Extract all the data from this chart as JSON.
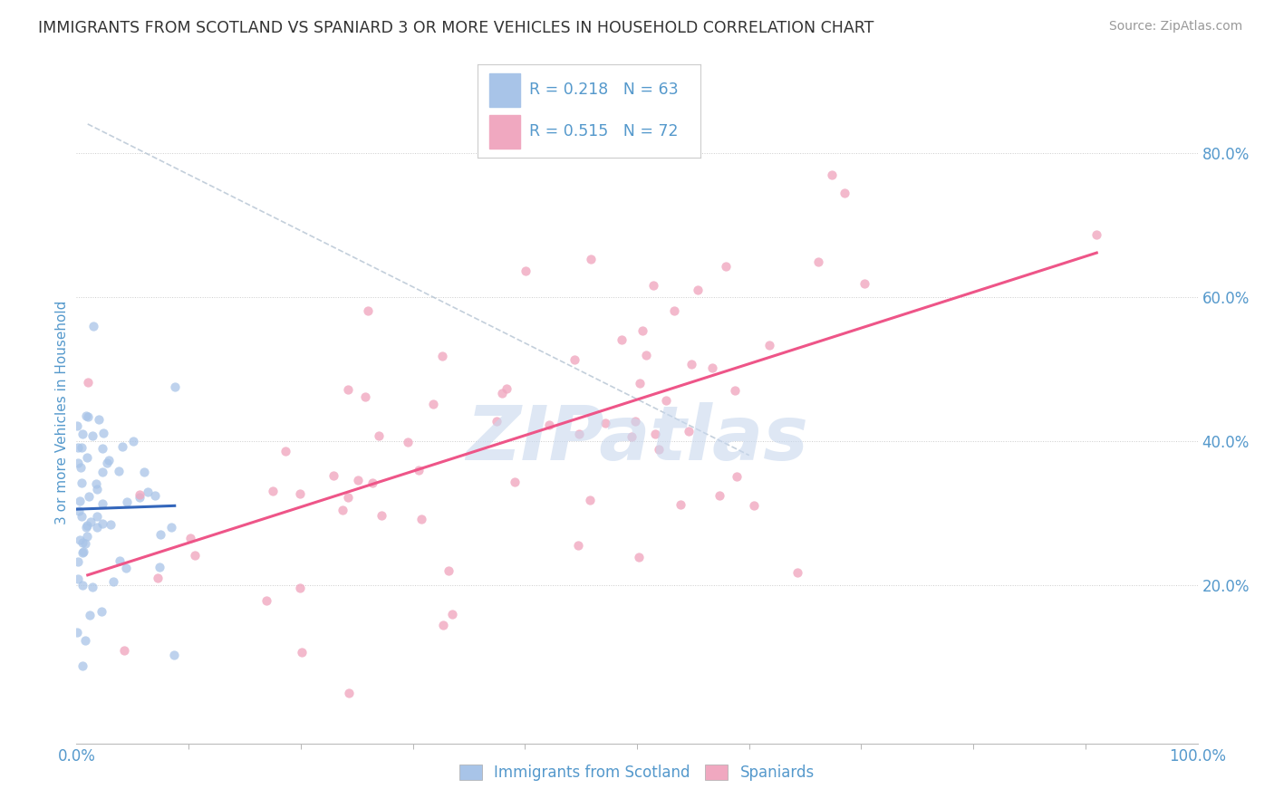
{
  "title": "IMMIGRANTS FROM SCOTLAND VS SPANIARD 3 OR MORE VEHICLES IN HOUSEHOLD CORRELATION CHART",
  "source": "Source: ZipAtlas.com",
  "ylabel": "3 or more Vehicles in Household",
  "xlim": [
    0.0,
    1.0
  ],
  "ylim": [
    -0.02,
    0.9
  ],
  "y_ticks": [
    0.2,
    0.4,
    0.6,
    0.8
  ],
  "y_tick_labels": [
    "20.0%",
    "40.0%",
    "60.0%",
    "80.0%"
  ],
  "x_ticks": [
    0.0,
    1.0
  ],
  "x_tick_labels": [
    "0.0%",
    "100.0%"
  ],
  "legend_r1": "0.218",
  "legend_n1": "63",
  "legend_r2": "0.515",
  "legend_n2": "72",
  "color_blue": "#a8c4e8",
  "color_pink": "#f0a8c0",
  "trend_blue": "#3366bb",
  "trend_pink": "#ee5588",
  "watermark": "ZIPatlas",
  "watermark_color": "#c8d8ee",
  "grid_color": "#cccccc",
  "background_color": "#ffffff",
  "title_color": "#333333",
  "axis_label_color": "#5599cc",
  "blue_N": 63,
  "blue_R": 0.218,
  "pink_N": 72,
  "pink_R": 0.515,
  "seed_blue": 42,
  "seed_pink": 99
}
